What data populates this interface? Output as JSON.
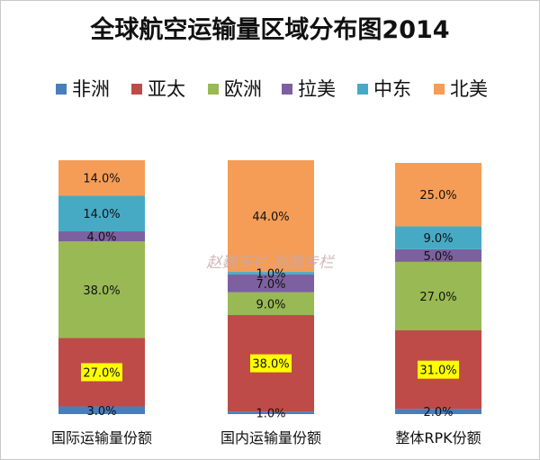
{
  "chart_data": {
    "type": "bar",
    "stacked": true,
    "title": "全球航空运输量区域分布图2014",
    "categories": [
      "国际运输量份额",
      "国内运输量份额",
      "整体RPK份额"
    ],
    "series": [
      {
        "name": "非洲",
        "color": "#4a7ebb",
        "values": [
          3.0,
          1.0,
          2.0
        ]
      },
      {
        "name": "亚太",
        "color": "#be4b48",
        "values": [
          27.0,
          38.0,
          31.0
        ]
      },
      {
        "name": "欧洲",
        "color": "#98b954",
        "values": [
          38.0,
          9.0,
          27.0
        ]
      },
      {
        "name": "拉美",
        "color": "#7d60a0",
        "values": [
          4.0,
          7.0,
          5.0
        ]
      },
      {
        "name": "中东",
        "color": "#46aac5",
        "values": [
          14.0,
          1.0,
          9.0
        ]
      },
      {
        "name": "北美",
        "color": "#f59d56",
        "values": [
          14.0,
          44.0,
          25.0
        ]
      }
    ],
    "value_format": "0.0%",
    "highlight_series": "亚太",
    "highlight_color": "#ffff00",
    "ylim": [
      0,
      100
    ],
    "legend_position": "top",
    "grid": false
  },
  "watermark": "赵巍专栏   赵巍专栏"
}
